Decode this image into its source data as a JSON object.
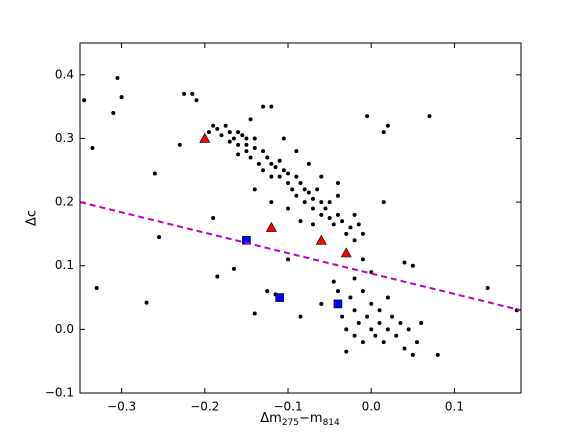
{
  "chart_data": {
    "type": "scatter",
    "xlabel": [
      "Δm",
      "275",
      "−m",
      "814"
    ],
    "ylabel": "Δc",
    "xlim": [
      -0.35,
      0.18
    ],
    "ylim": [
      -0.1,
      0.45
    ],
    "xticks": [
      {
        "value": -0.3,
        "label": "−0.3"
      },
      {
        "value": -0.2,
        "label": "−0.2"
      },
      {
        "value": -0.1,
        "label": "−0.1"
      },
      {
        "value": 0,
        "label": "0.0"
      },
      0.1
    ],
    "yticks": [
      {
        "value": -0.1,
        "label": "−0.1"
      },
      {
        "value": 0,
        "label": "0.0"
      },
      0.1,
      0.2,
      0.3,
      0.4
    ],
    "series": [
      {
        "marker": "dot",
        "color": "#000000",
        "x": [
          -0.345,
          -0.335,
          -0.33,
          -0.31,
          -0.305,
          -0.3,
          -0.27,
          -0.26,
          -0.255,
          -0.23,
          -0.225,
          -0.215,
          -0.21,
          -0.19,
          -0.185,
          -0.165,
          -0.16,
          -0.145,
          -0.15,
          -0.14,
          -0.125,
          -0.115,
          -0.1,
          -0.085,
          -0.04,
          -0.02,
          -0.015,
          -0.01,
          -0.005,
          0.015,
          0.015,
          0.02,
          0.04,
          0.05,
          0.07,
          0.08,
          0.14,
          0.175,
          -0.06,
          -0.195,
          -0.19,
          -0.185,
          -0.18,
          -0.175,
          -0.17,
          -0.17,
          -0.165,
          -0.16,
          -0.16,
          -0.155,
          -0.15,
          -0.15,
          -0.145,
          -0.14,
          -0.14,
          -0.135,
          -0.13,
          -0.13,
          -0.125,
          -0.12,
          -0.12,
          -0.115,
          -0.11,
          -0.11,
          -0.105,
          -0.1,
          -0.1,
          -0.095,
          -0.09,
          -0.09,
          -0.085,
          -0.08,
          -0.08,
          -0.075,
          -0.07,
          -0.07,
          -0.065,
          -0.06,
          -0.06,
          -0.055,
          -0.05,
          -0.05,
          -0.045,
          -0.04,
          -0.035,
          -0.03,
          -0.025,
          -0.02,
          -0.01,
          -0.13,
          -0.12,
          -0.105,
          -0.09,
          -0.075,
          -0.06,
          -0.04,
          -0.14,
          -0.12,
          -0.1,
          -0.085,
          -0.07,
          -0.04,
          -0.035,
          -0.03,
          -0.025,
          -0.02,
          -0.02,
          -0.015,
          -0.01,
          -0.01,
          -0.005,
          0,
          0,
          0.005,
          0.01,
          0.01,
          0.015,
          0.02,
          0.02,
          0.025,
          0.03,
          0.035,
          0.04,
          0.045,
          0.05,
          0.055,
          -0.03,
          -0.045,
          -0.02,
          0,
          0.06
        ],
        "values": [
          0.36,
          0.285,
          0.065,
          0.34,
          0.395,
          0.365,
          0.042,
          0.245,
          0.145,
          0.29,
          0.37,
          0.37,
          0.36,
          0.175,
          0.083,
          0.095,
          0.275,
          0.33,
          0.3,
          0.025,
          0.06,
          0.055,
          0.11,
          0.02,
          0.23,
          0.18,
          0.165,
          0.11,
          0.335,
          0.2,
          0.31,
          0.32,
          0.105,
          0.1,
          0.335,
          -0.04,
          0.065,
          0.03,
          0.04,
          0.31,
          0.32,
          0.315,
          0.305,
          0.32,
          0.31,
          0.295,
          0.3,
          0.31,
          0.29,
          0.305,
          0.28,
          0.29,
          0.27,
          0.3,
          0.285,
          0.26,
          0.28,
          0.25,
          0.27,
          0.26,
          0.24,
          0.255,
          0.265,
          0.24,
          0.25,
          0.23,
          0.245,
          0.22,
          0.24,
          0.21,
          0.23,
          0.22,
          0.2,
          0.215,
          0.205,
          0.19,
          0.22,
          0.2,
          0.18,
          0.19,
          0.175,
          0.2,
          0.165,
          0.18,
          0.17,
          0.15,
          0.16,
          0.14,
          0.15,
          0.35,
          0.35,
          0.3,
          0.28,
          0.26,
          0.24,
          0.21,
          0.22,
          0.2,
          0.19,
          0.17,
          0.165,
          0.06,
          0.02,
          0,
          0.05,
          -0.01,
          0.03,
          0.01,
          0.06,
          -0.02,
          0.02,
          0.04,
          0,
          -0.01,
          0.03,
          0.01,
          -0.02,
          0.05,
          0,
          0.02,
          -0.01,
          0.01,
          -0.03,
          0,
          -0.04,
          -0.02,
          -0.035,
          0.075,
          0.08,
          0.09,
          0.01
        ]
      },
      {
        "marker": "triangle",
        "color": "#ff0000",
        "x": [
          -0.2,
          -0.12,
          -0.06,
          -0.03
        ],
        "values": [
          0.3,
          0.16,
          0.14,
          0.12
        ]
      },
      {
        "marker": "square",
        "color": "#0000ff",
        "x": [
          -0.15,
          -0.11,
          -0.04
        ],
        "values": [
          0.14,
          0.05,
          0.04
        ]
      },
      {
        "marker": "dashed-line",
        "color": "#bf00bf",
        "x": [
          -0.35,
          0.18
        ],
        "values": [
          0.2,
          0.03
        ]
      }
    ]
  }
}
